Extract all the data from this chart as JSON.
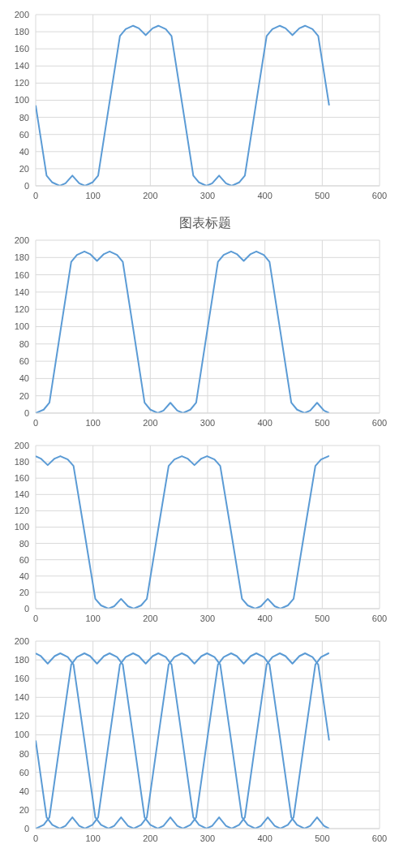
{
  "chart_data": [
    {
      "type": "line",
      "x": [
        0,
        19,
        29,
        42,
        52,
        64,
        76,
        86,
        99,
        109,
        128,
        147,
        157,
        170,
        180,
        192,
        204,
        214,
        227,
        237,
        256,
        275,
        285,
        298,
        308,
        320,
        332,
        342,
        355,
        365,
        384,
        403,
        413,
        426,
        436,
        448,
        460,
        470,
        483,
        493,
        512
      ],
      "series": [
        {
          "color": "#5b9bd5",
          "values": [
            94,
            12,
            4,
            0,
            3,
            12,
            3,
            0,
            4,
            12,
            94,
            175,
            183,
            187,
            184,
            176,
            184,
            187,
            183,
            175,
            94,
            12,
            4,
            0,
            3,
            12,
            3,
            0,
            4,
            12,
            94,
            175,
            183,
            187,
            184,
            176,
            184,
            187,
            183,
            175,
            94
          ]
        }
      ],
      "xlim": [
        0,
        600
      ],
      "xticks": [
        0,
        100,
        200,
        300,
        400,
        500,
        600
      ],
      "ylim": [
        0,
        200
      ],
      "yticks": [
        0,
        20,
        40,
        60,
        80,
        100,
        120,
        140,
        160,
        180,
        200
      ],
      "grid": true
    },
    {
      "type": "line",
      "title": "图表标题",
      "x": [
        0,
        14,
        24,
        43,
        62,
        72,
        85,
        95,
        107,
        119,
        129,
        142,
        152,
        171,
        190,
        200,
        213,
        223,
        235,
        247,
        257,
        270,
        280,
        299,
        318,
        328,
        341,
        351,
        363,
        375,
        385,
        398,
        408,
        427,
        446,
        456,
        469,
        479,
        491,
        503,
        512
      ],
      "series": [
        {
          "color": "#5b9bd5",
          "values": [
            0,
            4,
            12,
            94,
            175,
            183,
            187,
            184,
            176,
            184,
            187,
            183,
            175,
            94,
            12,
            4,
            0,
            3,
            12,
            3,
            0,
            4,
            12,
            94,
            175,
            183,
            187,
            184,
            176,
            184,
            187,
            183,
            175,
            94,
            12,
            4,
            0,
            3,
            12,
            3,
            0
          ]
        }
      ],
      "xlim": [
        0,
        600
      ],
      "xticks": [
        0,
        100,
        200,
        300,
        400,
        500,
        600
      ],
      "ylim": [
        0,
        200
      ],
      "yticks": [
        0,
        20,
        40,
        60,
        80,
        100,
        120,
        140,
        160,
        180,
        200
      ],
      "grid": true
    },
    {
      "type": "line",
      "x": [
        0,
        9,
        21,
        33,
        43,
        56,
        66,
        85,
        104,
        114,
        127,
        137,
        149,
        161,
        171,
        184,
        194,
        213,
        232,
        242,
        255,
        265,
        277,
        289,
        299,
        312,
        322,
        341,
        360,
        370,
        383,
        393,
        405,
        417,
        427,
        440,
        450,
        469,
        488,
        498,
        511,
        512
      ],
      "series": [
        {
          "color": "#5b9bd5",
          "values": [
            187,
            184,
            176,
            184,
            187,
            183,
            175,
            94,
            12,
            4,
            0,
            3,
            12,
            3,
            0,
            4,
            12,
            94,
            175,
            183,
            187,
            184,
            176,
            184,
            187,
            183,
            175,
            94,
            12,
            4,
            0,
            3,
            12,
            3,
            0,
            4,
            12,
            94,
            175,
            183,
            187,
            187
          ]
        }
      ],
      "xlim": [
        0,
        600
      ],
      "xticks": [
        0,
        100,
        200,
        300,
        400,
        500,
        600
      ],
      "ylim": [
        0,
        200
      ],
      "yticks": [
        0,
        20,
        40,
        60,
        80,
        100,
        120,
        140,
        160,
        180,
        200
      ],
      "grid": true
    },
    {
      "type": "line",
      "series": [
        {
          "color": "#5b9bd5",
          "x": [
            0,
            19,
            29,
            42,
            52,
            64,
            76,
            86,
            99,
            109,
            128,
            147,
            157,
            170,
            180,
            192,
            204,
            214,
            227,
            237,
            256,
            275,
            285,
            298,
            308,
            320,
            332,
            342,
            355,
            365,
            384,
            403,
            413,
            426,
            436,
            448,
            460,
            470,
            483,
            493,
            512
          ],
          "values": [
            94,
            12,
            4,
            0,
            3,
            12,
            3,
            0,
            4,
            12,
            94,
            175,
            183,
            187,
            184,
            176,
            184,
            187,
            183,
            175,
            94,
            12,
            4,
            0,
            3,
            12,
            3,
            0,
            4,
            12,
            94,
            175,
            183,
            187,
            184,
            176,
            184,
            187,
            183,
            175,
            94
          ]
        },
        {
          "color": "#5b9bd5",
          "x": [
            0,
            14,
            24,
            43,
            62,
            72,
            85,
            95,
            107,
            119,
            129,
            142,
            152,
            171,
            190,
            200,
            213,
            223,
            235,
            247,
            257,
            270,
            280,
            299,
            318,
            328,
            341,
            351,
            363,
            375,
            385,
            398,
            408,
            427,
            446,
            456,
            469,
            479,
            491,
            503,
            512
          ],
          "values": [
            0,
            4,
            12,
            94,
            175,
            183,
            187,
            184,
            176,
            184,
            187,
            183,
            175,
            94,
            12,
            4,
            0,
            3,
            12,
            3,
            0,
            4,
            12,
            94,
            175,
            183,
            187,
            184,
            176,
            184,
            187,
            183,
            175,
            94,
            12,
            4,
            0,
            3,
            12,
            3,
            0
          ]
        },
        {
          "color": "#5b9bd5",
          "x": [
            0,
            9,
            21,
            33,
            43,
            56,
            66,
            85,
            104,
            114,
            127,
            137,
            149,
            161,
            171,
            184,
            194,
            213,
            232,
            242,
            255,
            265,
            277,
            289,
            299,
            312,
            322,
            341,
            360,
            370,
            383,
            393,
            405,
            417,
            427,
            440,
            450,
            469,
            488,
            498,
            511,
            512
          ],
          "values": [
            187,
            184,
            176,
            184,
            187,
            183,
            175,
            94,
            12,
            4,
            0,
            3,
            12,
            3,
            0,
            4,
            12,
            94,
            175,
            183,
            187,
            184,
            176,
            184,
            187,
            183,
            175,
            94,
            12,
            4,
            0,
            3,
            12,
            3,
            0,
            4,
            12,
            94,
            175,
            183,
            187,
            187
          ]
        }
      ],
      "xlim": [
        0,
        600
      ],
      "xticks": [
        0,
        100,
        200,
        300,
        400,
        500,
        600
      ],
      "ylim": [
        0,
        200
      ],
      "yticks": [
        0,
        20,
        40,
        60,
        80,
        100,
        120,
        140,
        160,
        180,
        200
      ],
      "grid": true
    }
  ]
}
